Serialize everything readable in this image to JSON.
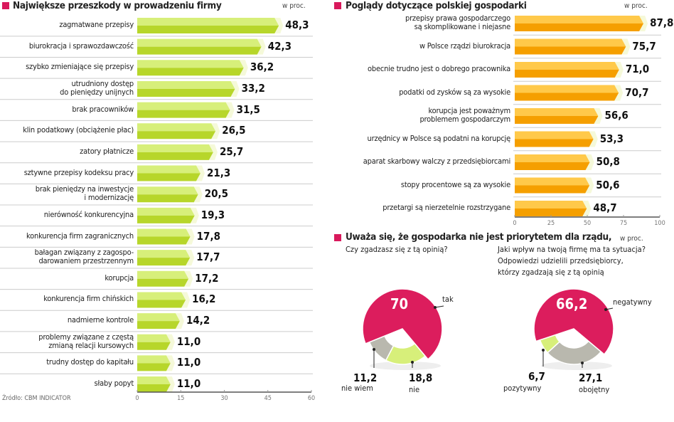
{
  "colors": {
    "accent": "#d9195c",
    "green_light": "#d7ef7a",
    "green_dark": "#b7d62a",
    "orange_light": "#ffc94a",
    "orange_dark": "#f59f00",
    "gray": "#b9b8ae",
    "red": "#dc1d5d"
  },
  "source": "Źródło: CBM INDICATOR",
  "chart_data": [
    {
      "type": "bar",
      "title": "Największe przeszkody w prowadzeniu firmy",
      "unit": "w proc.",
      "xlim": [
        0,
        60
      ],
      "ticks": [
        "0",
        "15",
        "30",
        "45",
        "60"
      ],
      "categories": [
        "zagmatwane przepisy",
        "biurokracja i sprawozdawczość",
        "szybko zmieniające się przepisy",
        "utrudniony dostęp\ndo pieniędzy unijnych",
        "brak pracowników",
        "klin podatkowy (obciążenie płac)",
        "zatory płatnicze",
        "sztywne przepisy kodeksu pracy",
        "brak pieniędzy na inwestycje\ni modernizację",
        "nierówność konkurencyjna",
        "konkurencja firm zagranicznych",
        "bałagan związany z zagospo-\ndarowaniem przestrzennym",
        "korupcja",
        "konkurencja firm chińskich",
        "nadmierne kontrole",
        "problemy związane z częstą\nzmianą relacji kursowych",
        "trudny dostęp do kapitału",
        "słaby popyt"
      ],
      "values": [
        48.3,
        42.3,
        36.2,
        33.2,
        31.5,
        26.5,
        25.7,
        21.3,
        20.5,
        19.3,
        17.8,
        17.7,
        17.2,
        16.2,
        14.2,
        11.0,
        11.0,
        11.0
      ],
      "labels": [
        "48,3",
        "42,3",
        "36,2",
        "33,2",
        "31,5",
        "26,5",
        "25,7",
        "21,3",
        "20,5",
        "19,3",
        "17,8",
        "17,7",
        "17,2",
        "16,2",
        "14,2",
        "11,0",
        "11,0",
        "11,0"
      ]
    },
    {
      "type": "bar",
      "title": "Poglądy dotyczące polskiej gospodarki",
      "unit": "w proc.",
      "xlim": [
        0,
        100
      ],
      "ticks": [
        "0",
        "25",
        "50",
        "75",
        "100"
      ],
      "categories": [
        "przepisy prawa gospodarczego\nsą skomplikowane i niejasne",
        "w Polsce rządzi biurokracja",
        "obecnie trudno jest o dobrego pracownika",
        "podatki od zysków są za wysokie",
        "korupcja jest poważnym\nproblemem gospodarczym",
        "urzędnicy w Polsce są podatni na korupcję",
        "aparat skarbowy walczy z przedsiębiorcami",
        "stopy procentowe są za wysokie",
        "przetargi są nierzetelnie rozstrzygane"
      ],
      "values": [
        87.8,
        75.7,
        71.0,
        70.7,
        56.6,
        53.3,
        50.8,
        50.6,
        48.7
      ],
      "labels": [
        "87,8",
        "75,7",
        "71,0",
        "70,7",
        "56,6",
        "53,3",
        "50,8",
        "50,6",
        "48,7"
      ]
    },
    {
      "type": "pie",
      "title": "Uważa się, że gospodarka nie jest priorytetem dla rządu,",
      "unit": "w proc.",
      "question": "Czy zgadzasz się z tą opinią?",
      "slices": [
        {
          "name": "tak",
          "value": 70,
          "label": "70",
          "color": "#dc1d5d"
        },
        {
          "name": "nie",
          "value": 18.8,
          "label": "18,8",
          "color": "#d7ef7a"
        },
        {
          "name": "nie wiem",
          "value": 11.2,
          "label": "11,2",
          "color": "#b9b8ae"
        }
      ]
    },
    {
      "type": "pie",
      "question": "Jaki wpływ na twoją firmę ma ta sytuacja?\nOdpowiedzi udzielili przedsiębiorcy,\nktórzy zgadzają się z tą opinią",
      "slices": [
        {
          "name": "negatywny",
          "value": 66.2,
          "label": "66,2",
          "color": "#dc1d5d"
        },
        {
          "name": "obojętny",
          "value": 27.1,
          "label": "27,1",
          "color": "#b9b8ae"
        },
        {
          "name": "pozytywny",
          "value": 6.7,
          "label": "6,7",
          "color": "#d7ef7a"
        }
      ]
    }
  ]
}
